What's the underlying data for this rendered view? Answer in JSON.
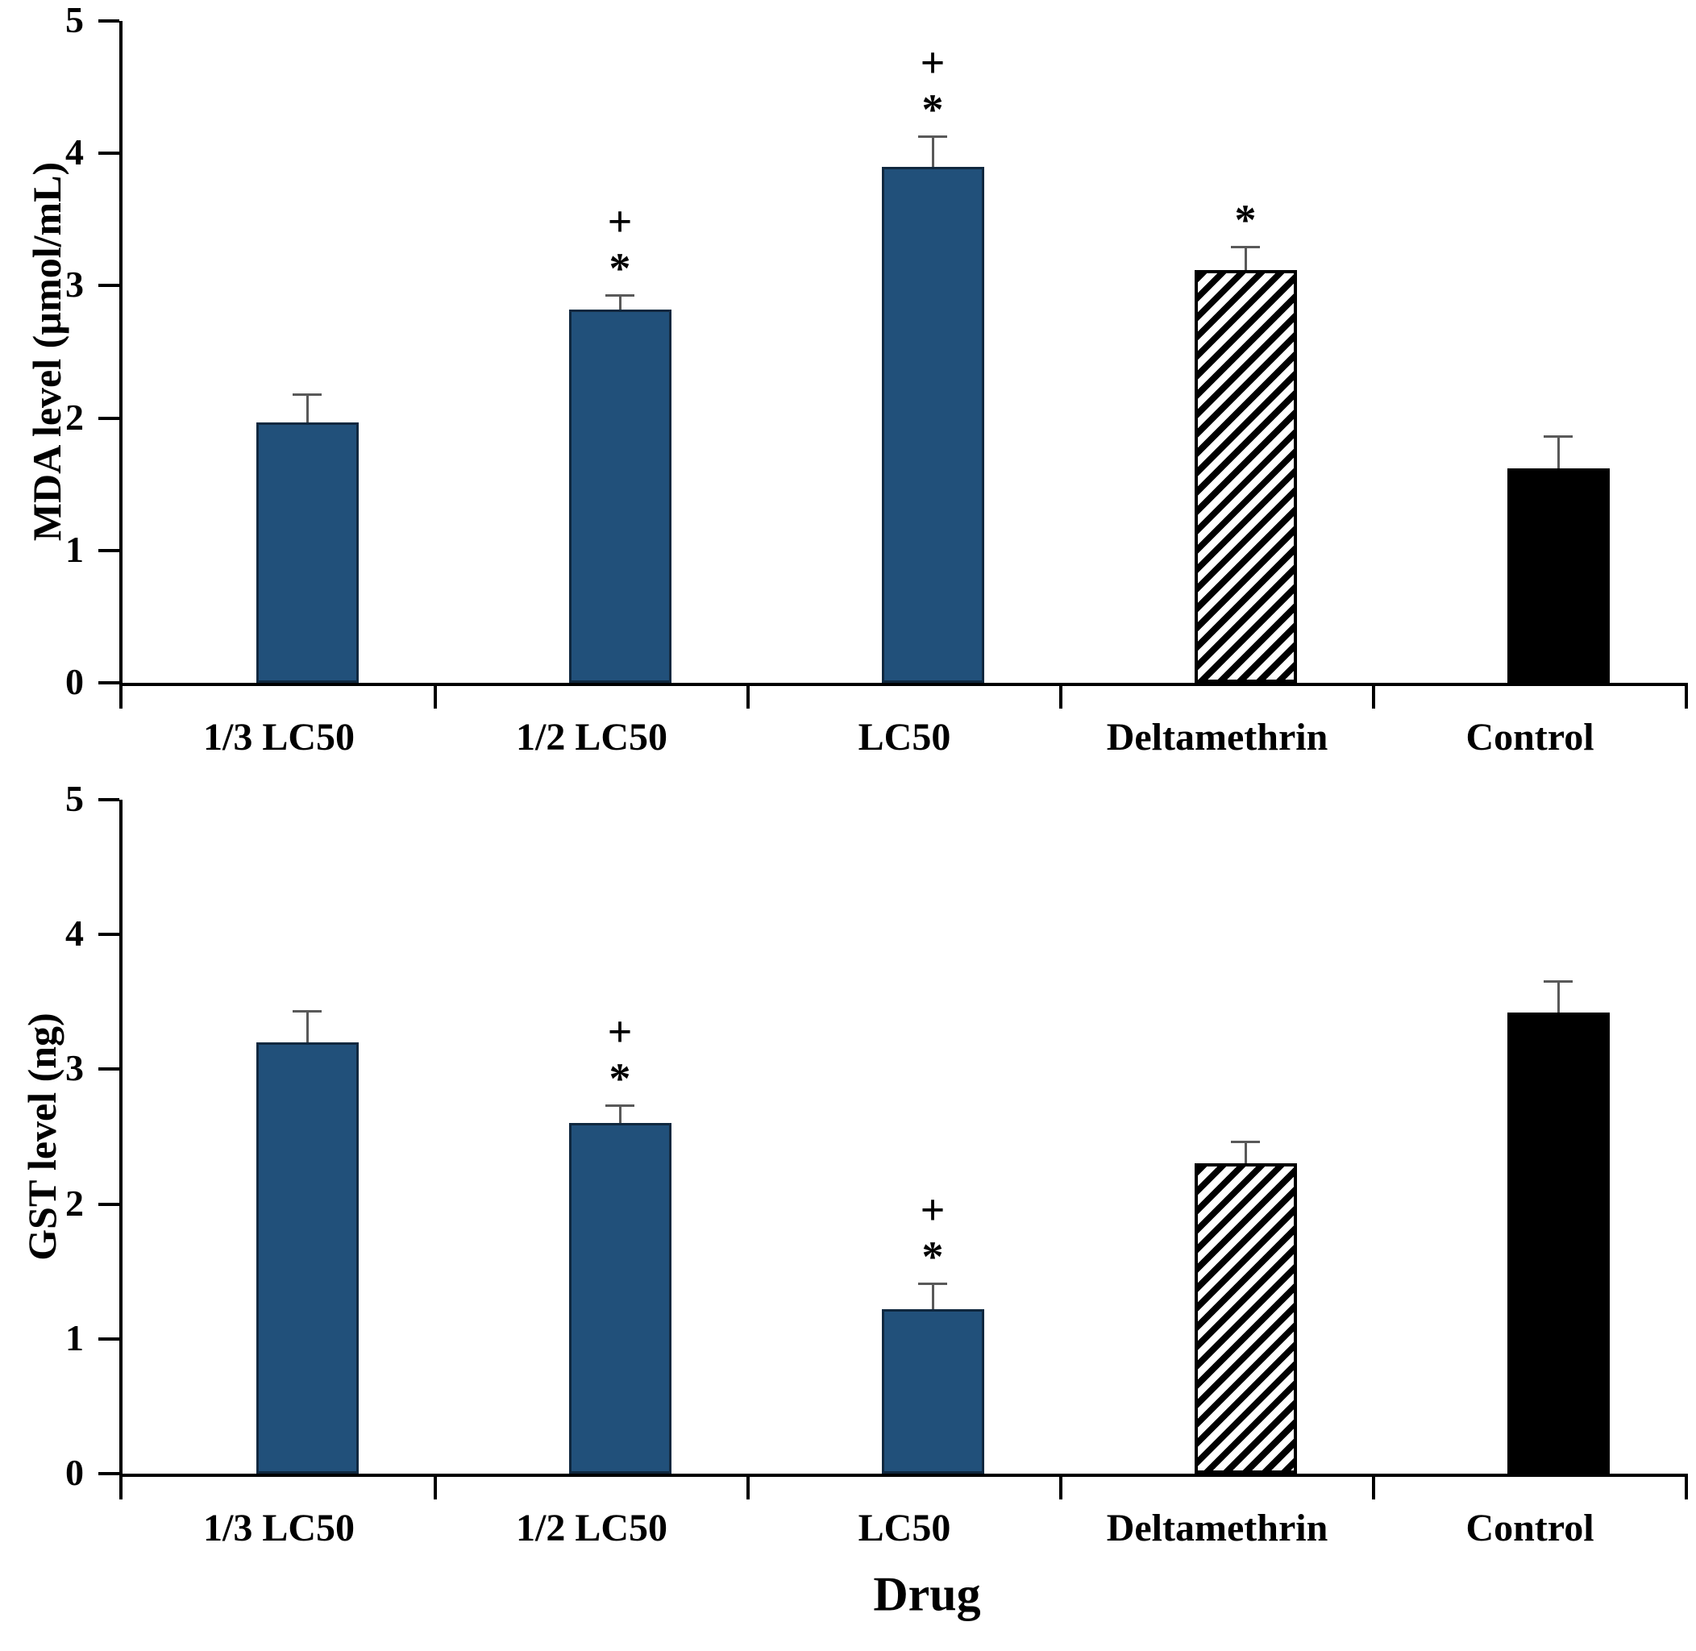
{
  "figure": {
    "xlabel": "Drug"
  },
  "styles": {
    "bar_blue": "#21507A",
    "bar_blue_border": "#10283F",
    "bar_black": "#000000",
    "hatch_foreground": "#000000",
    "hatch_background": "#FFFFFF",
    "error_bar_color": "#595959",
    "axis_color": "#000000",
    "text_color": "#000000"
  },
  "chart_data": [
    {
      "type": "bar",
      "title": "",
      "ylabel": "MDA level (µmol/mL)",
      "xlabel": "",
      "ylim": [
        0,
        5
      ],
      "yticks": [
        0,
        1,
        2,
        3,
        4,
        5
      ],
      "grid": false,
      "legend": "none",
      "categories": [
        "1/3 LC50",
        "1/2 LC50",
        "LC50",
        "Deltamethrin",
        "Control"
      ],
      "values": [
        1.97,
        2.82,
        3.9,
        3.12,
        1.62
      ],
      "errors": [
        0.2,
        0.1,
        0.22,
        0.16,
        0.23
      ],
      "bar_styles": [
        "blue",
        "blue",
        "blue",
        "hatch",
        "black"
      ],
      "annotations": [
        [],
        [
          "+",
          "*"
        ],
        [
          "+",
          "*"
        ],
        [
          "*"
        ],
        []
      ]
    },
    {
      "type": "bar",
      "title": "",
      "ylabel": "GST level (ng)",
      "xlabel": "Drug",
      "ylim": [
        0,
        5
      ],
      "yticks": [
        0,
        1,
        2,
        3,
        4,
        5
      ],
      "grid": false,
      "legend": "none",
      "categories": [
        "1/3 LC50",
        "1/2 LC50",
        "LC50",
        "Deltamethrin",
        "Control"
      ],
      "values": [
        3.2,
        2.6,
        1.22,
        2.3,
        3.42
      ],
      "errors": [
        0.22,
        0.12,
        0.18,
        0.15,
        0.22
      ],
      "bar_styles": [
        "blue",
        "blue",
        "blue",
        "hatch",
        "black"
      ],
      "annotations": [
        [],
        [
          "+",
          "*"
        ],
        [
          "+",
          "*"
        ],
        [],
        []
      ]
    }
  ]
}
